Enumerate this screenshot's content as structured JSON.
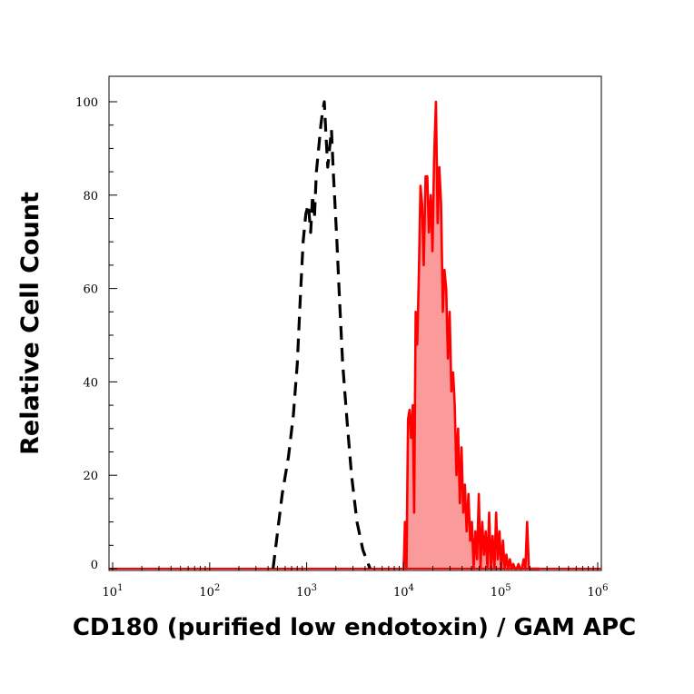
{
  "chart_data": {
    "type": "histogram",
    "xlabel": "CD180 (purified low endotoxin) / GAM APC",
    "ylabel": "Relative Cell Count",
    "x_scale": "log",
    "xlim": [
      10,
      1000000
    ],
    "ylim": [
      0,
      100
    ],
    "x_ticks": [
      {
        "value": 10,
        "base": "10",
        "exp": "1"
      },
      {
        "value": 100,
        "base": "10",
        "exp": "2"
      },
      {
        "value": 1000,
        "base": "10",
        "exp": "3"
      },
      {
        "value": 10000,
        "base": "10",
        "exp": "4"
      },
      {
        "value": 100000,
        "base": "10",
        "exp": "5"
      },
      {
        "value": 1000000,
        "base": "10",
        "exp": "6"
      }
    ],
    "y_ticks": [
      "0",
      "20",
      "40",
      "60",
      "80",
      "100"
    ],
    "grid": false,
    "series": [
      {
        "style": "dashed",
        "color": "#000000",
        "fill": "none",
        "x": [
          450,
          560,
          650,
          730,
          800,
          860,
          920,
          980,
          1040,
          1100,
          1150,
          1200,
          1260,
          1330,
          1400,
          1460,
          1520,
          1580,
          1650,
          1720,
          1800,
          1880,
          1960,
          2050,
          2180,
          2350,
          2600,
          2900,
          3300,
          3800,
          4500
        ],
        "y": [
          0,
          16,
          24,
          33,
          44,
          58,
          70,
          76,
          78,
          72,
          80,
          75,
          85,
          90,
          95,
          98,
          100,
          93,
          86,
          90,
          94,
          85,
          78,
          70,
          58,
          44,
          32,
          20,
          10,
          4,
          0
        ]
      },
      {
        "style": "solid",
        "color": "#ff0000",
        "fill": "#fa9a9a",
        "x": [
          10000,
          10300,
          10700,
          11100,
          11500,
          11900,
          12400,
          12800,
          13300,
          13800,
          14300,
          14900,
          15500,
          16100,
          16800,
          17500,
          18200,
          19000,
          19800,
          20600,
          21500,
          22400,
          23300,
          24300,
          25300,
          26300,
          27400,
          28600,
          29800,
          31000,
          32300,
          33600,
          35000,
          36400,
          37900,
          39500,
          41100,
          42800,
          44600,
          46500,
          48500,
          50500,
          52600,
          54800,
          57100,
          59500,
          62000,
          64600,
          67300,
          70100,
          73000,
          76100,
          79300,
          82600,
          86100,
          89700,
          93400,
          97300,
          101400,
          105600,
          110000,
          114600,
          119400,
          124400,
          129600,
          135000,
          140600,
          146500,
          152600,
          159000,
          165700,
          172600,
          179800,
          187300,
          195100,
          203200,
          211700,
          220500,
          229700,
          239300,
          250000
        ],
        "y": [
          0,
          10,
          0,
          32,
          34,
          28,
          35,
          12,
          55,
          48,
          62,
          82,
          78,
          65,
          84,
          84,
          72,
          80,
          68,
          88,
          100,
          74,
          86,
          78,
          55,
          64,
          60,
          45,
          55,
          38,
          42,
          35,
          20,
          30,
          14,
          26,
          12,
          18,
          8,
          16,
          6,
          10,
          0,
          8,
          2,
          16,
          0,
          10,
          3,
          8,
          0,
          12,
          0,
          7,
          0,
          12,
          2,
          8,
          0,
          6,
          0,
          3,
          0,
          2,
          0,
          1,
          0,
          0,
          1,
          0,
          0,
          2,
          0,
          10,
          0,
          0,
          0,
          0,
          0,
          0,
          0
        ]
      }
    ]
  }
}
